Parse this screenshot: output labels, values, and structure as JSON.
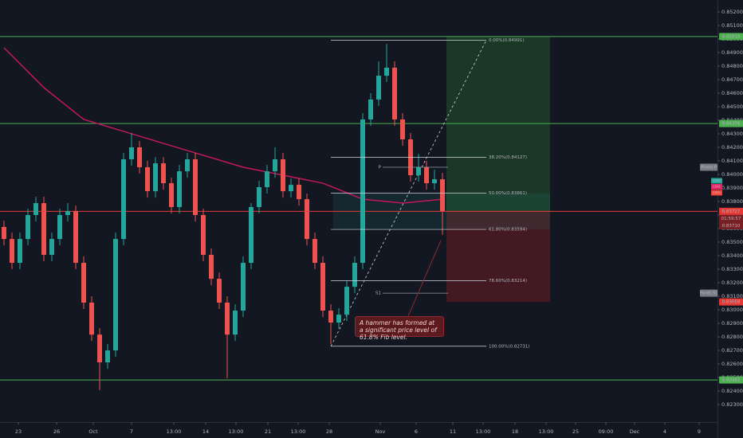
{
  "chart_data": {
    "type": "candlestick",
    "background": "#131722",
    "up_color": "#26a69a",
    "down_color": "#ef5350",
    "xlim": [
      -0.5,
      89.5
    ],
    "ylim": [
      0.82171,
      0.85288
    ],
    "x": [
      0,
      1,
      2,
      3,
      4,
      5,
      6,
      7,
      8,
      9,
      10,
      11,
      12,
      13,
      14,
      15,
      16,
      17,
      18,
      19,
      20,
      21,
      22,
      23,
      24,
      25,
      26,
      27,
      28,
      29,
      30,
      31,
      32,
      33,
      34,
      35,
      36,
      37,
      38,
      39,
      40,
      41,
      42,
      43,
      44,
      45,
      46,
      47,
      48,
      49,
      50,
      51,
      52,
      53,
      54,
      55
    ],
    "open": [
      0.83612,
      0.83523,
      0.83347,
      0.83523,
      0.837,
      0.83788,
      0.83406,
      0.83523,
      0.837,
      0.83729,
      0.83347,
      0.83053,
      0.82817,
      0.82612,
      0.827,
      0.83523,
      0.84112,
      0.842,
      0.84053,
      0.83876,
      0.84082,
      0.83935,
      0.83759,
      0.84023,
      0.84112,
      0.837,
      0.83406,
      0.83229,
      0.83053,
      0.82817,
      0.82994,
      0.83347,
      0.83759,
      0.83906,
      0.84023,
      0.84112,
      0.83876,
      0.83923,
      0.83817,
      0.83523,
      0.83347,
      0.82994,
      0.82906,
      0.82964,
      0.8317,
      0.83347,
      0.84406,
      0.84553,
      0.84729,
      0.84788,
      0.84406,
      0.84259,
      0.83994,
      0.84053,
      0.83935,
      0.83964
    ],
    "high": [
      0.83659,
      0.8357,
      0.8357,
      0.83747,
      0.83835,
      0.83835,
      0.8357,
      0.83747,
      0.83788,
      0.8377,
      0.83394,
      0.831,
      0.82864,
      0.82747,
      0.8357,
      0.84159,
      0.84306,
      0.84247,
      0.841,
      0.84129,
      0.84129,
      0.83976,
      0.8407,
      0.84159,
      0.84159,
      0.83747,
      0.83453,
      0.83276,
      0.831,
      0.83041,
      0.83394,
      0.83788,
      0.83953,
      0.8407,
      0.842,
      0.84159,
      0.8397,
      0.8397,
      0.83859,
      0.8357,
      0.83394,
      0.83041,
      0.83012,
      0.83217,
      0.83394,
      0.84453,
      0.846,
      0.84835,
      0.84964,
      0.84835,
      0.84453,
      0.84306,
      0.84153,
      0.841,
      0.84035,
      0.84012
    ],
    "low": [
      0.83476,
      0.833,
      0.833,
      0.83476,
      0.83653,
      0.83359,
      0.83359,
      0.83476,
      0.83653,
      0.833,
      0.83006,
      0.8277,
      0.82406,
      0.82564,
      0.82653,
      0.83476,
      0.84064,
      0.84006,
      0.83829,
      0.83829,
      0.83888,
      0.83712,
      0.83712,
      0.83976,
      0.83653,
      0.83359,
      0.83182,
      0.83006,
      0.82494,
      0.8277,
      0.82947,
      0.833,
      0.83712,
      0.83859,
      0.83976,
      0.83829,
      0.83829,
      0.8377,
      0.83476,
      0.833,
      0.82947,
      0.82747,
      0.82859,
      0.82917,
      0.83123,
      0.833,
      0.84359,
      0.84506,
      0.84682,
      0.84359,
      0.84212,
      0.83947,
      0.83947,
      0.83888,
      0.83888,
      0.83553
    ],
    "close": [
      0.83523,
      0.83347,
      0.83523,
      0.837,
      0.83788,
      0.83406,
      0.83523,
      0.837,
      0.83729,
      0.83347,
      0.83053,
      0.82817,
      0.82612,
      0.827,
      0.83523,
      0.84112,
      0.842,
      0.84053,
      0.83876,
      0.84082,
      0.83935,
      0.83759,
      0.84023,
      0.84112,
      0.837,
      0.83406,
      0.83229,
      0.83053,
      0.82817,
      0.82994,
      0.83347,
      0.83759,
      0.83906,
      0.84023,
      0.84112,
      0.83876,
      0.83923,
      0.83817,
      0.83523,
      0.83347,
      0.82994,
      0.82906,
      0.82964,
      0.8317,
      0.83347,
      0.84406,
      0.84553,
      0.84729,
      0.84788,
      0.84406,
      0.84259,
      0.83994,
      0.84053,
      0.83935,
      0.83964,
      0.83729
    ],
    "ema": {
      "name": "EMA",
      "color": "#c2185b",
      "x": [
        0,
        5,
        10,
        15,
        20,
        25,
        30,
        35,
        40,
        45,
        50,
        55
      ],
      "values": [
        0.84935,
        0.84641,
        0.84406,
        0.84318,
        0.84229,
        0.84141,
        0.84053,
        0.83994,
        0.83935,
        0.83817,
        0.83788,
        0.83817
      ]
    },
    "ema_tags": [
      {
        "name": "EMA",
        "color": "#26a69a"
      },
      {
        "name": "EMA",
        "color": "#e91e63"
      },
      {
        "name": "EMA",
        "color": "#f44336"
      }
    ],
    "yticks": [
      {
        "value": 0.823,
        "label": "0.82300"
      },
      {
        "value": 0.824,
        "label": "0.82400"
      },
      {
        "value": 0.825,
        "label": "0.82500"
      },
      {
        "value": 0.826,
        "label": "0.82600"
      },
      {
        "value": 0.827,
        "label": "0.82700"
      },
      {
        "value": 0.828,
        "label": "0.82800"
      },
      {
        "value": 0.829,
        "label": "0.82900"
      },
      {
        "value": 0.83,
        "label": "0.83000"
      },
      {
        "value": 0.831,
        "label": "0.83100"
      },
      {
        "value": 0.832,
        "label": "0.83200"
      },
      {
        "value": 0.833,
        "label": "0.83300"
      },
      {
        "value": 0.834,
        "label": "0.83400"
      },
      {
        "value": 0.835,
        "label": "0.83500"
      },
      {
        "value": 0.836,
        "label": "0.83600"
      },
      {
        "value": 0.837,
        "label": "0.83700"
      },
      {
        "value": 0.838,
        "label": "0.83800"
      },
      {
        "value": 0.839,
        "label": "0.83900"
      },
      {
        "value": 0.84,
        "label": "0.84000"
      },
      {
        "value": 0.841,
        "label": "0.84100"
      },
      {
        "value": 0.842,
        "label": "0.84200"
      },
      {
        "value": 0.843,
        "label": "0.84300"
      },
      {
        "value": 0.844,
        "label": "0.84400"
      },
      {
        "value": 0.845,
        "label": "0.84500"
      },
      {
        "value": 0.846,
        "label": "0.84600"
      },
      {
        "value": 0.847,
        "label": "0.84700"
      },
      {
        "value": 0.848,
        "label": "0.84800"
      },
      {
        "value": 0.849,
        "label": "0.84900"
      },
      {
        "value": 0.85,
        "label": "0.85000"
      },
      {
        "value": 0.851,
        "label": "0.85100"
      },
      {
        "value": 0.852,
        "label": "0.85200"
      }
    ],
    "xticks": [
      {
        "value": 1.8,
        "label": "23"
      },
      {
        "value": 6.6,
        "label": "26"
      },
      {
        "value": 11.2,
        "label": "Oct"
      },
      {
        "value": 16,
        "label": "7"
      },
      {
        "value": 21.3,
        "label": "13:00"
      },
      {
        "value": 25.3,
        "label": "14"
      },
      {
        "value": 29.1,
        "label": "13:00"
      },
      {
        "value": 33.1,
        "label": "21"
      },
      {
        "value": 36.9,
        "label": "13:00"
      },
      {
        "value": 40.8,
        "label": "28"
      },
      {
        "value": 47.2,
        "label": "Nov"
      },
      {
        "value": 51.7,
        "label": "6"
      },
      {
        "value": 56.3,
        "label": "11"
      },
      {
        "value": 60.1,
        "label": "13:00"
      },
      {
        "value": 64.1,
        "label": "18"
      },
      {
        "value": 68,
        "label": "13:00"
      },
      {
        "value": 71.7,
        "label": "25"
      },
      {
        "value": 75.5,
        "label": "09:00"
      },
      {
        "value": 79.1,
        "label": "Dec"
      },
      {
        "value": 82.9,
        "label": "4"
      },
      {
        "value": 87.2,
        "label": "9"
      }
    ],
    "hlines": [
      {
        "value": 0.85018,
        "color": "#4caf50"
      },
      {
        "value": 0.84376,
        "color": "#4caf50"
      },
      {
        "value": 0.82482,
        "color": "#4caf50"
      },
      {
        "value": 0.83727,
        "color": "#e53935"
      }
    ],
    "countdown": "01:59:57",
    "bid_label": "0.83710",
    "position": {
      "target": 0.85018,
      "entry": 0.83727,
      "stop": 0.83058,
      "stop_label": "0.83058"
    },
    "fib": {
      "levels": [
        {
          "value": 0.84991,
          "label": "0.00%(0.84991)"
        },
        {
          "value": 0.84127,
          "label": "38.20%(0.84127)"
        },
        {
          "value": 0.83861,
          "label": "50.00%(0.83861)"
        },
        {
          "value": 0.83594,
          "label": "61.80%(0.83594)"
        },
        {
          "value": 0.83214,
          "label": "78.60%(0.83214)"
        },
        {
          "value": 0.82731,
          "label": "100.00%(0.82731)"
        }
      ]
    },
    "pivots": [
      {
        "name": "P",
        "value": 0.84053,
        "tag": "Pivots P"
      },
      {
        "name": "S1",
        "value": 0.83123,
        "tag": "Pivots S1"
      }
    ],
    "annotation": "A hammer has formed at a significant price level of 61.8% Fib level."
  }
}
